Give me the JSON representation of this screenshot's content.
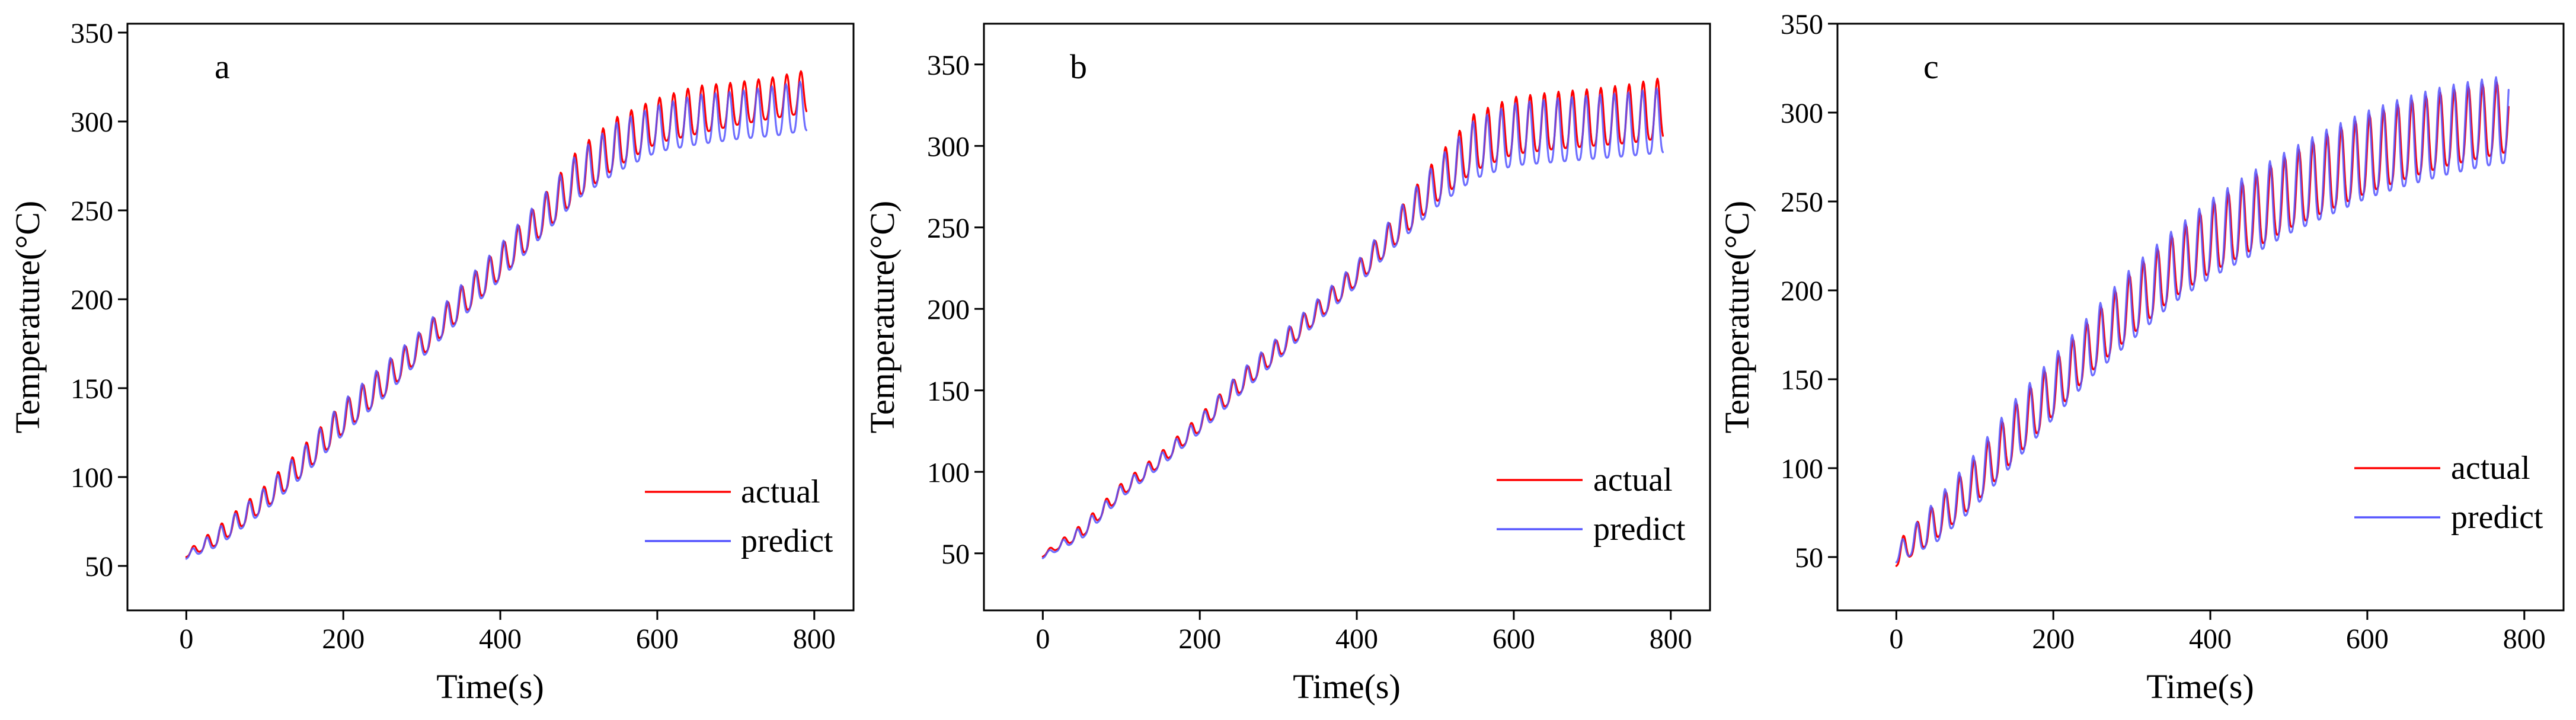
{
  "figure": {
    "panels": [
      {
        "label": "a"
      },
      {
        "label": "b"
      },
      {
        "label": "c"
      }
    ]
  },
  "colors": {
    "actual": "#ff0000",
    "predict": "#5555ff",
    "axes": "#000000",
    "overlap": "#800080"
  },
  "chart_data": [
    {
      "type": "line",
      "panel": "a",
      "title": "",
      "xlabel": "Time(s)",
      "ylabel": "Temperature(°C)",
      "xlim": [
        -75,
        850
      ],
      "ylim": [
        25,
        355
      ],
      "xticks": [
        0,
        200,
        400,
        600,
        800
      ],
      "yticks": [
        50,
        100,
        150,
        200,
        250,
        300,
        350
      ],
      "legend": {
        "position": "bottom-right",
        "entries": [
          "actual",
          "predict"
        ]
      },
      "series": [
        {
          "name": "actual",
          "color": "#ff0000",
          "x": [
            0,
            40,
            100,
            150,
            200,
            250,
            300,
            350,
            400,
            450,
            500,
            550,
            600,
            650,
            700,
            750,
            790
          ],
          "peak": [
            58,
            72,
            95,
            118,
            142,
            162,
            182,
            207,
            230,
            255,
            285,
            303,
            313,
            320,
            322,
            325,
            329
          ],
          "trough": [
            55,
            62,
            82,
            102,
            125,
            145,
            168,
            190,
            212,
            235,
            258,
            275,
            288,
            293,
            298,
            302,
            305
          ]
        },
        {
          "name": "predict",
          "color": "#5555ff",
          "x": [
            0,
            40,
            100,
            150,
            200,
            250,
            300,
            350,
            400,
            450,
            500,
            550,
            600,
            650,
            700,
            750,
            790
          ],
          "peak": [
            57,
            71,
            94,
            117,
            143,
            163,
            183,
            208,
            231,
            256,
            283,
            300,
            309,
            315,
            317,
            320,
            323
          ],
          "trough": [
            54,
            61,
            81,
            101,
            124,
            144,
            167,
            189,
            211,
            234,
            257,
            272,
            283,
            287,
            290,
            292,
            295
          ]
        }
      ]
    },
    {
      "type": "line",
      "panel": "b",
      "title": "",
      "xlabel": "Time(s)",
      "ylabel": "Temperature(°C)",
      "xlim": [
        -75,
        850
      ],
      "ylim": [
        15,
        375
      ],
      "xticks": [
        0,
        200,
        400,
        600,
        800
      ],
      "yticks": [
        50,
        100,
        150,
        200,
        250,
        300,
        350
      ],
      "legend": {
        "position": "bottom-right",
        "entries": [
          "actual",
          "predict"
        ]
      },
      "series": [
        {
          "name": "actual",
          "color": "#ff0000",
          "x": [
            0,
            50,
            100,
            150,
            200,
            250,
            300,
            350,
            400,
            450,
            500,
            550,
            600,
            650,
            700,
            750,
            790
          ],
          "peak": [
            50,
            68,
            93,
            112,
            135,
            160,
            182,
            205,
            228,
            258,
            292,
            320,
            330,
            333,
            335,
            338,
            342
          ],
          "trough": [
            48,
            60,
            85,
            104,
            125,
            148,
            170,
            193,
            215,
            240,
            265,
            285,
            295,
            298,
            300,
            302,
            305
          ]
        },
        {
          "name": "predict",
          "color": "#5555ff",
          "x": [
            0,
            50,
            100,
            150,
            200,
            250,
            300,
            350,
            400,
            450,
            500,
            550,
            600,
            650,
            700,
            750,
            790
          ],
          "peak": [
            49,
            67,
            92,
            111,
            134,
            161,
            183,
            206,
            229,
            259,
            290,
            316,
            326,
            329,
            331,
            333,
            336
          ],
          "trough": [
            47,
            59,
            84,
            103,
            124,
            147,
            169,
            192,
            214,
            239,
            262,
            280,
            288,
            290,
            292,
            294,
            296
          ]
        }
      ]
    },
    {
      "type": "line",
      "panel": "c",
      "title": "",
      "xlabel": "Time(s)",
      "ylabel": "Temperature(°C)",
      "xlim": [
        -75,
        850
      ],
      "ylim": [
        20,
        350
      ],
      "xticks": [
        0,
        200,
        400,
        600,
        800
      ],
      "yticks": [
        50,
        100,
        150,
        200,
        250,
        300,
        350
      ],
      "legend": {
        "position": "bottom-right",
        "entries": [
          "actual",
          "predict"
        ]
      },
      "series": [
        {
          "name": "actual",
          "color": "#ff0000",
          "x": [
            0,
            50,
            100,
            150,
            200,
            250,
            300,
            350,
            400,
            450,
            500,
            550,
            600,
            650,
            700,
            750,
            780
          ],
          "peak": [
            58,
            80,
            105,
            135,
            160,
            185,
            210,
            230,
            248,
            263,
            276,
            288,
            298,
            306,
            312,
            316,
            318
          ],
          "trough": [
            45,
            60,
            80,
            105,
            130,
            155,
            175,
            195,
            210,
            222,
            235,
            245,
            255,
            263,
            270,
            275,
            278
          ]
        },
        {
          "name": "predict",
          "color": "#5555ff",
          "x": [
            0,
            50,
            100,
            150,
            200,
            250,
            300,
            350,
            400,
            450,
            500,
            550,
            600,
            650,
            700,
            750,
            780
          ],
          "peak": [
            56,
            82,
            108,
            138,
            163,
            188,
            213,
            233,
            251,
            266,
            279,
            291,
            301,
            309,
            315,
            319,
            321
          ],
          "trough": [
            47,
            58,
            78,
            103,
            128,
            152,
            172,
            192,
            207,
            219,
            232,
            242,
            252,
            259,
            265,
            270,
            272
          ]
        }
      ]
    }
  ]
}
